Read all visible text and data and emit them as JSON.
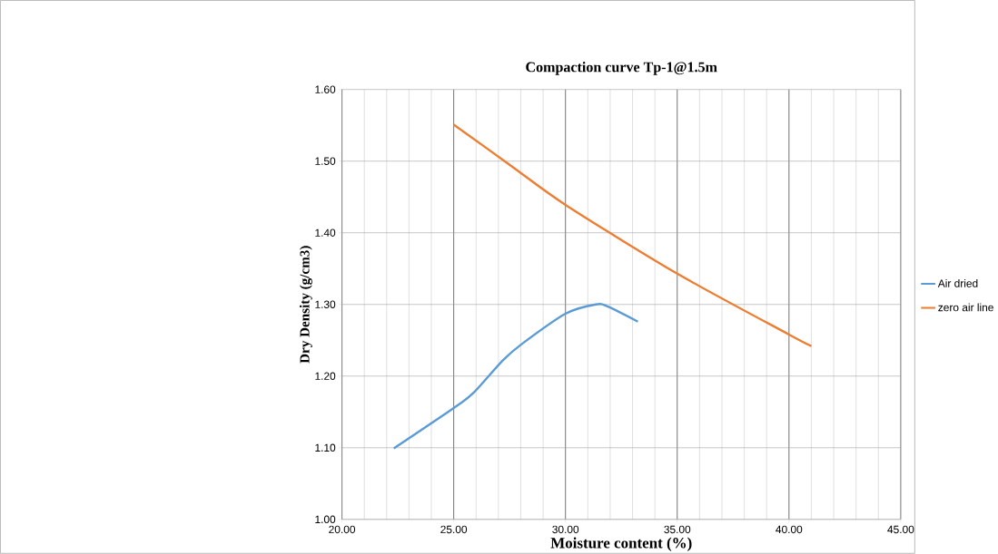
{
  "chart_data": {
    "type": "line",
    "title": "Compaction curve Tp-1@1.5m",
    "xlabel": "Moisture content (%)",
    "ylabel": "Dry Density (g/cm3)",
    "series": [
      {
        "name": "Air dried",
        "color": "#5b9bd5",
        "x": [
          22.32,
          25.03,
          25.9,
          27.2,
          28.1,
          30.0,
          31.36,
          31.9,
          33.24
        ],
        "values": [
          1.099,
          1.156,
          1.177,
          1.222,
          1.246,
          1.287,
          1.3,
          1.297,
          1.276
        ]
      },
      {
        "name": "zero air line",
        "color": "#ed7d31",
        "x": [
          25.0,
          27.5,
          30.0,
          35.0,
          40.0,
          41.0
        ],
        "values": [
          1.551,
          1.495,
          1.439,
          1.343,
          1.258,
          1.242
        ]
      }
    ],
    "xlim": [
      20,
      45
    ],
    "ylim": [
      1.0,
      1.6
    ],
    "xticks": [
      {
        "value": 20,
        "label": "20.00"
      },
      {
        "value": 21,
        "label": null
      },
      {
        "value": 22,
        "label": null
      },
      {
        "value": 23,
        "label": null
      },
      {
        "value": 24,
        "label": null
      },
      {
        "value": 25,
        "label": "25.00"
      },
      {
        "value": 26,
        "label": null
      },
      {
        "value": 27,
        "label": null
      },
      {
        "value": 28,
        "label": null
      },
      {
        "value": 29,
        "label": null
      },
      {
        "value": 30,
        "label": "30.00"
      },
      {
        "value": 31,
        "label": null
      },
      {
        "value": 32,
        "label": null
      },
      {
        "value": 33,
        "label": null
      },
      {
        "value": 34,
        "label": null
      },
      {
        "value": 35,
        "label": "35.00"
      },
      {
        "value": 36,
        "label": null
      },
      {
        "value": 37,
        "label": null
      },
      {
        "value": 38,
        "label": null
      },
      {
        "value": 39,
        "label": null
      },
      {
        "value": 40,
        "label": "40.00"
      },
      {
        "value": 41,
        "label": null
      },
      {
        "value": 42,
        "label": null
      },
      {
        "value": 43,
        "label": null
      },
      {
        "value": 44,
        "label": null
      },
      {
        "value": 45,
        "label": "45.00"
      }
    ],
    "yticks": [
      {
        "value": 1.0,
        "label": "1.00"
      },
      {
        "value": 1.1,
        "label": "1.10"
      },
      {
        "value": 1.2,
        "label": "1.20"
      },
      {
        "value": 1.3,
        "label": "1.30"
      },
      {
        "value": 1.4,
        "label": "1.40"
      },
      {
        "value": 1.5,
        "label": "1.50"
      },
      {
        "value": 1.6,
        "label": "1.60"
      }
    ],
    "grid": true,
    "legend": "right",
    "marker": "none",
    "line_style": "solid"
  }
}
